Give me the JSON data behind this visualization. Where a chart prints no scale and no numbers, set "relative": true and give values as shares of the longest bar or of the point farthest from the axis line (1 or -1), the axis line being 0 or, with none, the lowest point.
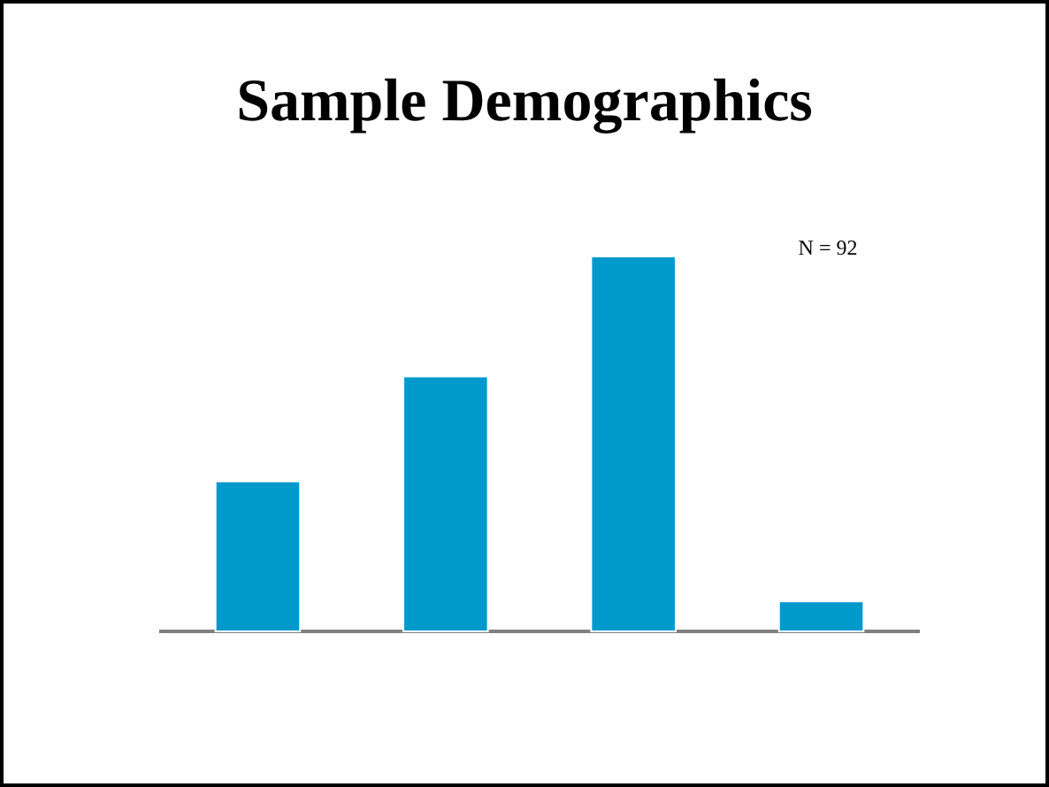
{
  "chart_data": {
    "type": "bar",
    "title": "Sample Demographics",
    "categories": [
      null,
      null,
      null,
      null
    ],
    "values": [
      0.4,
      0.68,
      1,
      0.08
    ],
    "color": "#0099cc",
    "relative": true,
    "annotations": [
      "N = 92"
    ]
  }
}
